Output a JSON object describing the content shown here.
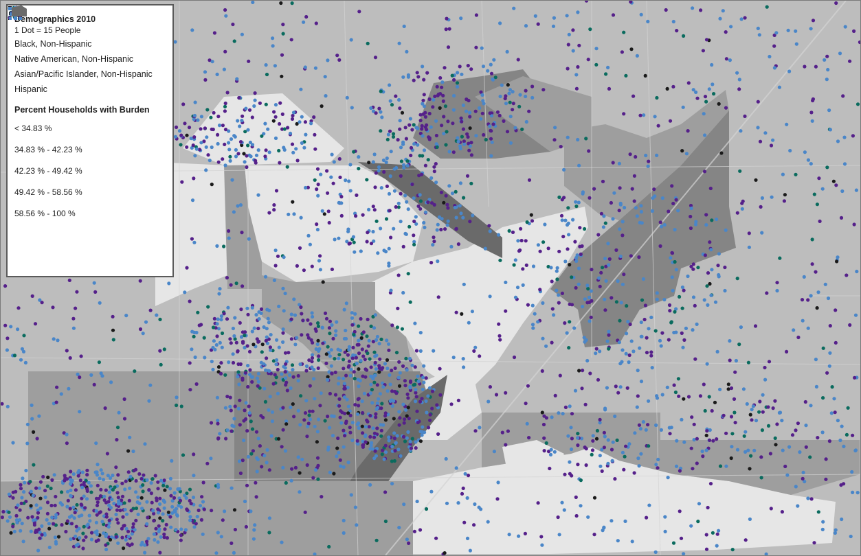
{
  "legend": {
    "title": "Demographics 2010",
    "subtitle": "1 Dot = 15 People",
    "demographics": [
      {
        "label": "Black, Non-Hispanic",
        "color": "#0a6b5e",
        "icon": "black-population-dots-icon"
      },
      {
        "label": "Native American, Non-Hispanic",
        "color": "#1a1a1a",
        "icon": "native-american-population-dots-icon"
      },
      {
        "label": "Asian/Pacific Islander, Non-Hispanic",
        "color": "#55208a",
        "icon": "asian-pacific-population-dots-icon"
      },
      {
        "label": "Hispanic",
        "color": "#4a86c8",
        "icon": "hispanic-population-dots-icon"
      }
    ],
    "burden_title": "Percent Households with Burden",
    "burden_classes": [
      {
        "label": "< 34.83 %",
        "color": "#e6e6e6"
      },
      {
        "label": "34.83 % - 42.23 %",
        "color": "#bdbdbd"
      },
      {
        "label": "42.23 % - 49.42 %",
        "color": "#9e9e9e"
      },
      {
        "label": "49.42 % - 58.56 %",
        "color": "#858585"
      },
      {
        "label": "58.56 % - 100 %",
        "color": "#6a6a6a"
      }
    ]
  },
  "map": {
    "background_color": "#bdbdbd",
    "road_color": "#d4d4d4"
  }
}
